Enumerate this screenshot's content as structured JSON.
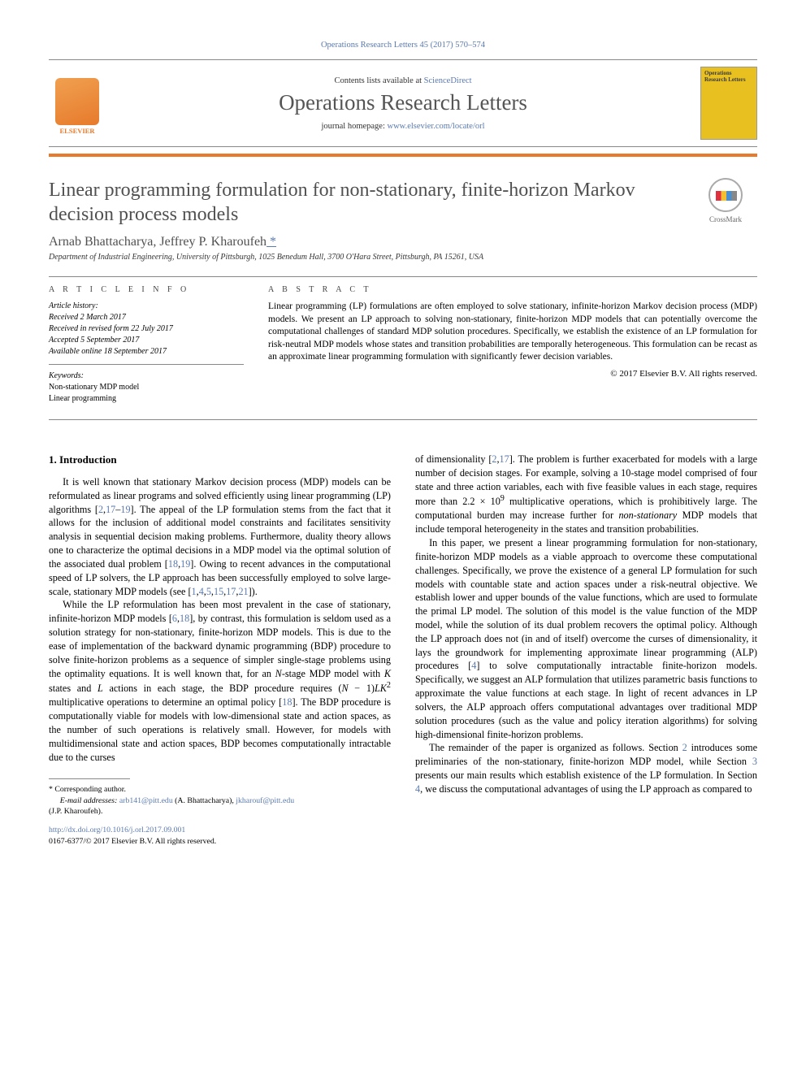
{
  "header": {
    "citation": "Operations Research Letters 45 (2017) 570–574",
    "contents_prefix": "Contents lists available at ",
    "contents_link": "ScienceDirect",
    "journal_name": "Operations Research Letters",
    "homepage_prefix": "journal homepage: ",
    "homepage_url": "www.elsevier.com/locate/orl",
    "elsevier_label": "ELSEVIER",
    "cover_title": "Operations Research Letters"
  },
  "crossmark_label": "CrossMark",
  "article": {
    "title": "Linear programming formulation for non-stationary, finite-horizon Markov decision process models",
    "authors": "Arnab Bhattacharya, Jeffrey P. Kharoufeh",
    "corresponding_marker": " *",
    "affiliation": "Department of Industrial Engineering, University of Pittsburgh, 1025 Benedum Hall, 3700 O'Hara Street, Pittsburgh, PA 15261, USA"
  },
  "info": {
    "article_info_heading": "A R T I C L E   I N F O",
    "abstract_heading": "A B S T R A C T",
    "history_label": "Article history:",
    "received": "Received 2 March 2017",
    "revised": "Received in revised form 22 July 2017",
    "accepted": "Accepted 5 September 2017",
    "online": "Available online 18 September 2017",
    "keywords_label": "Keywords:",
    "keyword1": "Non-stationary MDP model",
    "keyword2": "Linear programming",
    "abstract": "Linear programming (LP) formulations are often employed to solve stationary, infinite-horizon Markov decision process (MDP) models. We present an LP approach to solving non-stationary, finite-horizon MDP models that can potentially overcome the computational challenges of standard MDP solution procedures. Specifically, we establish the existence of an LP formulation for risk-neutral MDP models whose states and transition probabilities are temporally heterogeneous. This formulation can be recast as an approximate linear programming formulation with significantly fewer decision variables.",
    "copyright": "© 2017 Elsevier B.V. All rights reserved."
  },
  "body": {
    "section1_heading": "1. Introduction",
    "p1a": "It is well known that stationary Markov decision process (MDP) models can be reformulated as linear programs and solved efficiently using linear programming (LP) algorithms [",
    "p1_ref1": "2",
    "p1_comma1": ",",
    "p1_ref2": "17",
    "p1_dash": "–",
    "p1_ref3": "19",
    "p1b": "]. The appeal of the LP formulation stems from the fact that it allows for the inclusion of additional model constraints and facilitates sensitivity analysis in sequential decision making problems. Furthermore, duality theory allows one to characterize the optimal decisions in a MDP model via the optimal solution of the associated dual problem [",
    "p1_ref4": "18",
    "p1_comma2": ",",
    "p1_ref5": "19",
    "p1c": "]. Owing to recent advances in the computational speed of LP solvers, the LP approach has been successfully employed to solve large-scale, stationary MDP models (see [",
    "p1_ref6": "1",
    "p1_comma3": ",",
    "p1_ref7": "4",
    "p1_comma4": ",",
    "p1_ref8": "5",
    "p1_comma5": ",",
    "p1_ref9": "15",
    "p1_comma6": ",",
    "p1_ref10": "17",
    "p1_comma7": ",",
    "p1_ref11": "21",
    "p1d": "]).",
    "p2a": "While the LP reformulation has been most prevalent in the case of stationary, infinite-horizon MDP models [",
    "p2_ref1": "6",
    "p2_comma1": ",",
    "p2_ref2": "18",
    "p2b": "], by contrast, this formulation is seldom used as a solution strategy for non-stationary, finite-horizon MDP models. This is due to the ease of implementation of the backward dynamic programming (BDP) procedure to solve finite-horizon problems as a sequence of simpler single-stage problems using the optimality equations. It is well known that, for an ",
    "p2_N": "N",
    "p2c": "-stage MDP model with ",
    "p2_K": "K",
    "p2d": " states and ",
    "p2_L": "L",
    "p2e": " actions in each stage, the BDP procedure requires (",
    "p2_N2": "N",
    "p2f": " − 1)",
    "p2_LK": "LK",
    "p2_sq": "2",
    "p2g": " multiplicative operations to determine an optimal policy [",
    "p2_ref3": "18",
    "p2h": "]. The BDP procedure is computationally viable for models with low-dimensional state and action spaces, as the number of such operations is relatively small. However, for models with multidimensional state and action spaces, BDP becomes computationally intractable due to the curses",
    "p3a": "of dimensionality [",
    "p3_ref1": "2",
    "p3_comma1": ",",
    "p3_ref2": "17",
    "p3b": "]. The problem is further exacerbated for models with a large number of decision stages. For example, solving a 10-stage model comprised of four state and three action variables, each with five feasible values in each stage, requires more than 2.2 × 10",
    "p3_exp": "9",
    "p3c": " multiplicative operations, which is prohibitively large. The computational burden may increase further for ",
    "p3_ital": "non-stationary",
    "p3d": " MDP models that include temporal heterogeneity in the states and transition probabilities.",
    "p4a": "In this paper, we present a linear programming formulation for non-stationary, finite-horizon MDP models as a viable approach to overcome these computational challenges. Specifically, we prove the existence of a general LP formulation for such models with countable state and action spaces under a risk-neutral objective. We establish lower and upper bounds of the value functions, which are used to formulate the primal LP model. The solution of this model is the value function of the MDP model, while the solution of its dual problem recovers the optimal policy. Although the LP approach does not (in and of itself) overcome the curses of dimensionality, it lays the groundwork for implementing approximate linear programming (ALP) procedures [",
    "p4_ref1": "4",
    "p4b": "] to solve computationally intractable finite-horizon models. Specifically, we suggest an ALP formulation that utilizes parametric basis functions to approximate the value functions at each stage. In light of recent advances in LP solvers, the ALP approach offers computational advantages over traditional MDP solution procedures (such as the value and policy iteration algorithms) for solving high-dimensional finite-horizon problems.",
    "p5a": "The remainder of the paper is organized as follows. Section ",
    "p5_ref1": "2",
    "p5b": " introduces some preliminaries of the non-stationary, finite-horizon MDP model, while Section ",
    "p5_ref2": "3",
    "p5c": " presents our main results which establish existence of the LP formulation. In Section ",
    "p5_ref3": "4",
    "p5d": ", we discuss the computational advantages of using the LP approach as compared to"
  },
  "footer": {
    "corresponding": "* Corresponding author.",
    "email_label": "E-mail addresses: ",
    "email1": "arb141@pitt.edu",
    "email1_name": " (A. Bhattacharya), ",
    "email2": "jkharouf@pitt.edu",
    "email2_name": " (J.P. Kharoufeh).",
    "doi": "http://dx.doi.org/10.1016/j.orl.2017.09.001",
    "issn_line": "0167-6377/© 2017 Elsevier B.V. All rights reserved."
  },
  "colors": {
    "link": "#5a7ab0",
    "orange": "#e77a2c",
    "elsevier_gradient_start": "#f0a050",
    "elsevier_gradient_end": "#e77a2c",
    "cover_bg": "#e8c020",
    "gray_text": "#505050"
  }
}
